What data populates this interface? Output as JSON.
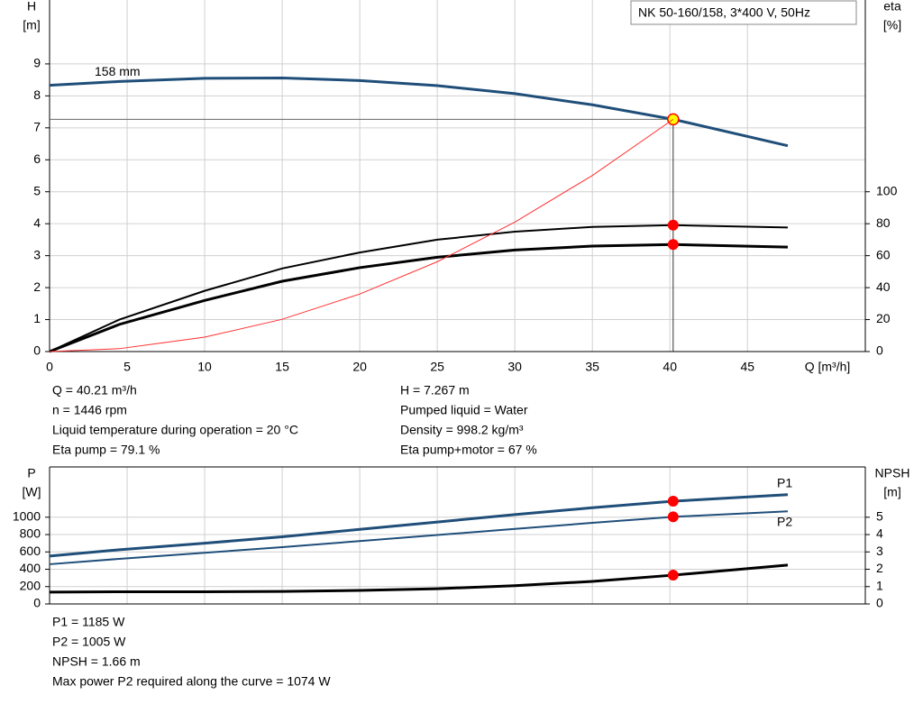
{
  "chart_data": [
    {
      "type": "line",
      "title": "NK 50-160/158, 3*400 V, 50Hz",
      "y_label": "H",
      "y_unit": "[m]",
      "y2_label": "eta",
      "y2_unit": "[%]",
      "x_label": "Q [m³/h]",
      "xlim": [
        0,
        52.6
      ],
      "xticks": [
        0,
        5,
        10,
        15,
        20,
        25,
        30,
        35,
        40,
        45
      ],
      "ylim": [
        0,
        11
      ],
      "yticks": [
        0,
        1,
        2,
        3,
        4,
        5,
        6,
        7,
        8,
        9
      ],
      "y2lim": [
        0,
        220
      ],
      "y2ticks": [
        0,
        20,
        40,
        60,
        80,
        100
      ],
      "grid": true,
      "x": [
        0,
        4.5,
        10,
        15,
        20,
        25,
        30,
        35,
        40.21,
        47.6
      ],
      "series": [
        {
          "name": "158 mm",
          "color": "#1f4e79",
          "line_width": 3,
          "values": [
            8.33,
            8.45,
            8.55,
            8.56,
            8.48,
            8.32,
            8.07,
            7.72,
            7.267,
            6.44
          ]
        },
        {
          "color": "#000000",
          "axis": "y2",
          "line_width": 2,
          "values": [
            0,
            20,
            38,
            52,
            62,
            70,
            75,
            78,
            79.1,
            77.6
          ]
        },
        {
          "color": "#000000",
          "axis": "y2",
          "line_width": 3,
          "values": [
            0,
            17,
            32,
            44,
            52.5,
            59,
            63.5,
            66,
            67,
            65.4
          ]
        },
        {
          "color": "#ff3030",
          "line_width": 1,
          "values": [
            0,
            0.09,
            0.45,
            1.01,
            1.8,
            2.81,
            4.05,
            5.51,
            7.267,
            null
          ]
        }
      ],
      "info_left": [
        "Q = 40.21 m³/h",
        "n = 1446 rpm",
        "Liquid temperature during operation = 20 °C",
        "Eta pump = 79.1 %"
      ],
      "info_right": [
        "H = 7.267 m",
        "Pumped liquid = Water",
        "Density = 998.2 kg/m³",
        "Eta pump+motor = 67 %"
      ]
    },
    {
      "type": "line",
      "y_label": "P",
      "y_unit": "[W]",
      "y2_label": "NPSH",
      "y2_unit": "[m]",
      "xlim": [
        0,
        52.6
      ],
      "ylim": [
        0,
        1580
      ],
      "yticks": [
        0,
        200,
        400,
        600,
        800,
        1000
      ],
      "y2lim": [
        0,
        7.9
      ],
      "y2ticks": [
        0,
        1,
        2,
        3,
        4,
        5
      ],
      "grid": true,
      "x": [
        0,
        4.5,
        10,
        15,
        20,
        25,
        30,
        35,
        40.21,
        47.6
      ],
      "series": [
        {
          "name": "P1",
          "color": "#1f4e79",
          "line_width": 3,
          "values": [
            552,
            625,
            700,
            775,
            860,
            945,
            1030,
            1110,
            1185,
            1260
          ]
        },
        {
          "name": "P2",
          "color": "#1f4e79",
          "line_width": 2,
          "values": [
            458,
            520,
            590,
            655,
            725,
            795,
            865,
            935,
            1005,
            1068
          ]
        },
        {
          "color": "#000000",
          "axis": "y2",
          "line_width": 3,
          "values": [
            0.68,
            0.7,
            0.7,
            0.72,
            0.78,
            0.88,
            1.05,
            1.3,
            1.66,
            2.24
          ]
        }
      ],
      "info": [
        "P1 = 1185 W",
        "P2 = 1005 W",
        "NPSH = 1.66 m",
        "Max power P2 required along the curve = 1074 W"
      ]
    }
  ]
}
